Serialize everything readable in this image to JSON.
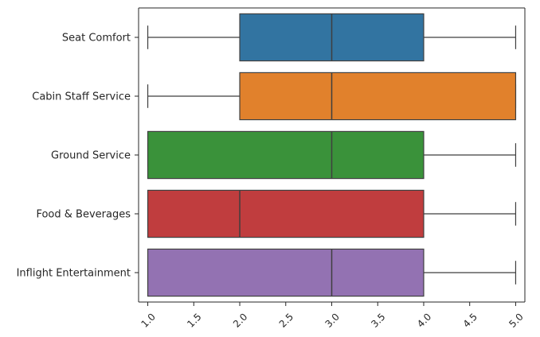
{
  "chart_data": {
    "type": "boxplot",
    "orientation": "horizontal",
    "title": "",
    "xlabel": "",
    "ylabel": "",
    "xlim": [
      0.9,
      5.1
    ],
    "x_ticks": [
      1.0,
      1.5,
      2.0,
      2.5,
      3.0,
      3.5,
      4.0,
      4.5,
      5.0
    ],
    "x_tick_labels": [
      "1.0",
      "1.5",
      "2.0",
      "2.5",
      "3.0",
      "3.5",
      "4.0",
      "4.5",
      "5.0"
    ],
    "x_tick_rotation_deg": 45,
    "grid": false,
    "categories": [
      "Seat Comfort",
      "Cabin Staff Service",
      "Ground Service",
      "Food & Beverages",
      "Inflight Entertainment"
    ],
    "boxes": [
      {
        "category": "Seat Comfort",
        "whislo": 1,
        "q1": 2,
        "median": 3,
        "q3": 4,
        "whishi": 5,
        "color": "#3274a1"
      },
      {
        "category": "Cabin Staff Service",
        "whislo": 1,
        "q1": 2,
        "median": 3,
        "q3": 5,
        "whishi": 5,
        "color": "#e1812c"
      },
      {
        "category": "Ground Service",
        "whislo": 1,
        "q1": 1,
        "median": 3,
        "q3": 4,
        "whishi": 5,
        "color": "#3a923a"
      },
      {
        "category": "Food & Beverages",
        "whislo": 1,
        "q1": 1,
        "median": 2,
        "q3": 4,
        "whishi": 5,
        "color": "#c03d3e"
      },
      {
        "category": "Inflight Entertainment",
        "whislo": 1,
        "q1": 1,
        "median": 3,
        "q3": 4,
        "whishi": 5,
        "color": "#9372b2"
      }
    ]
  }
}
